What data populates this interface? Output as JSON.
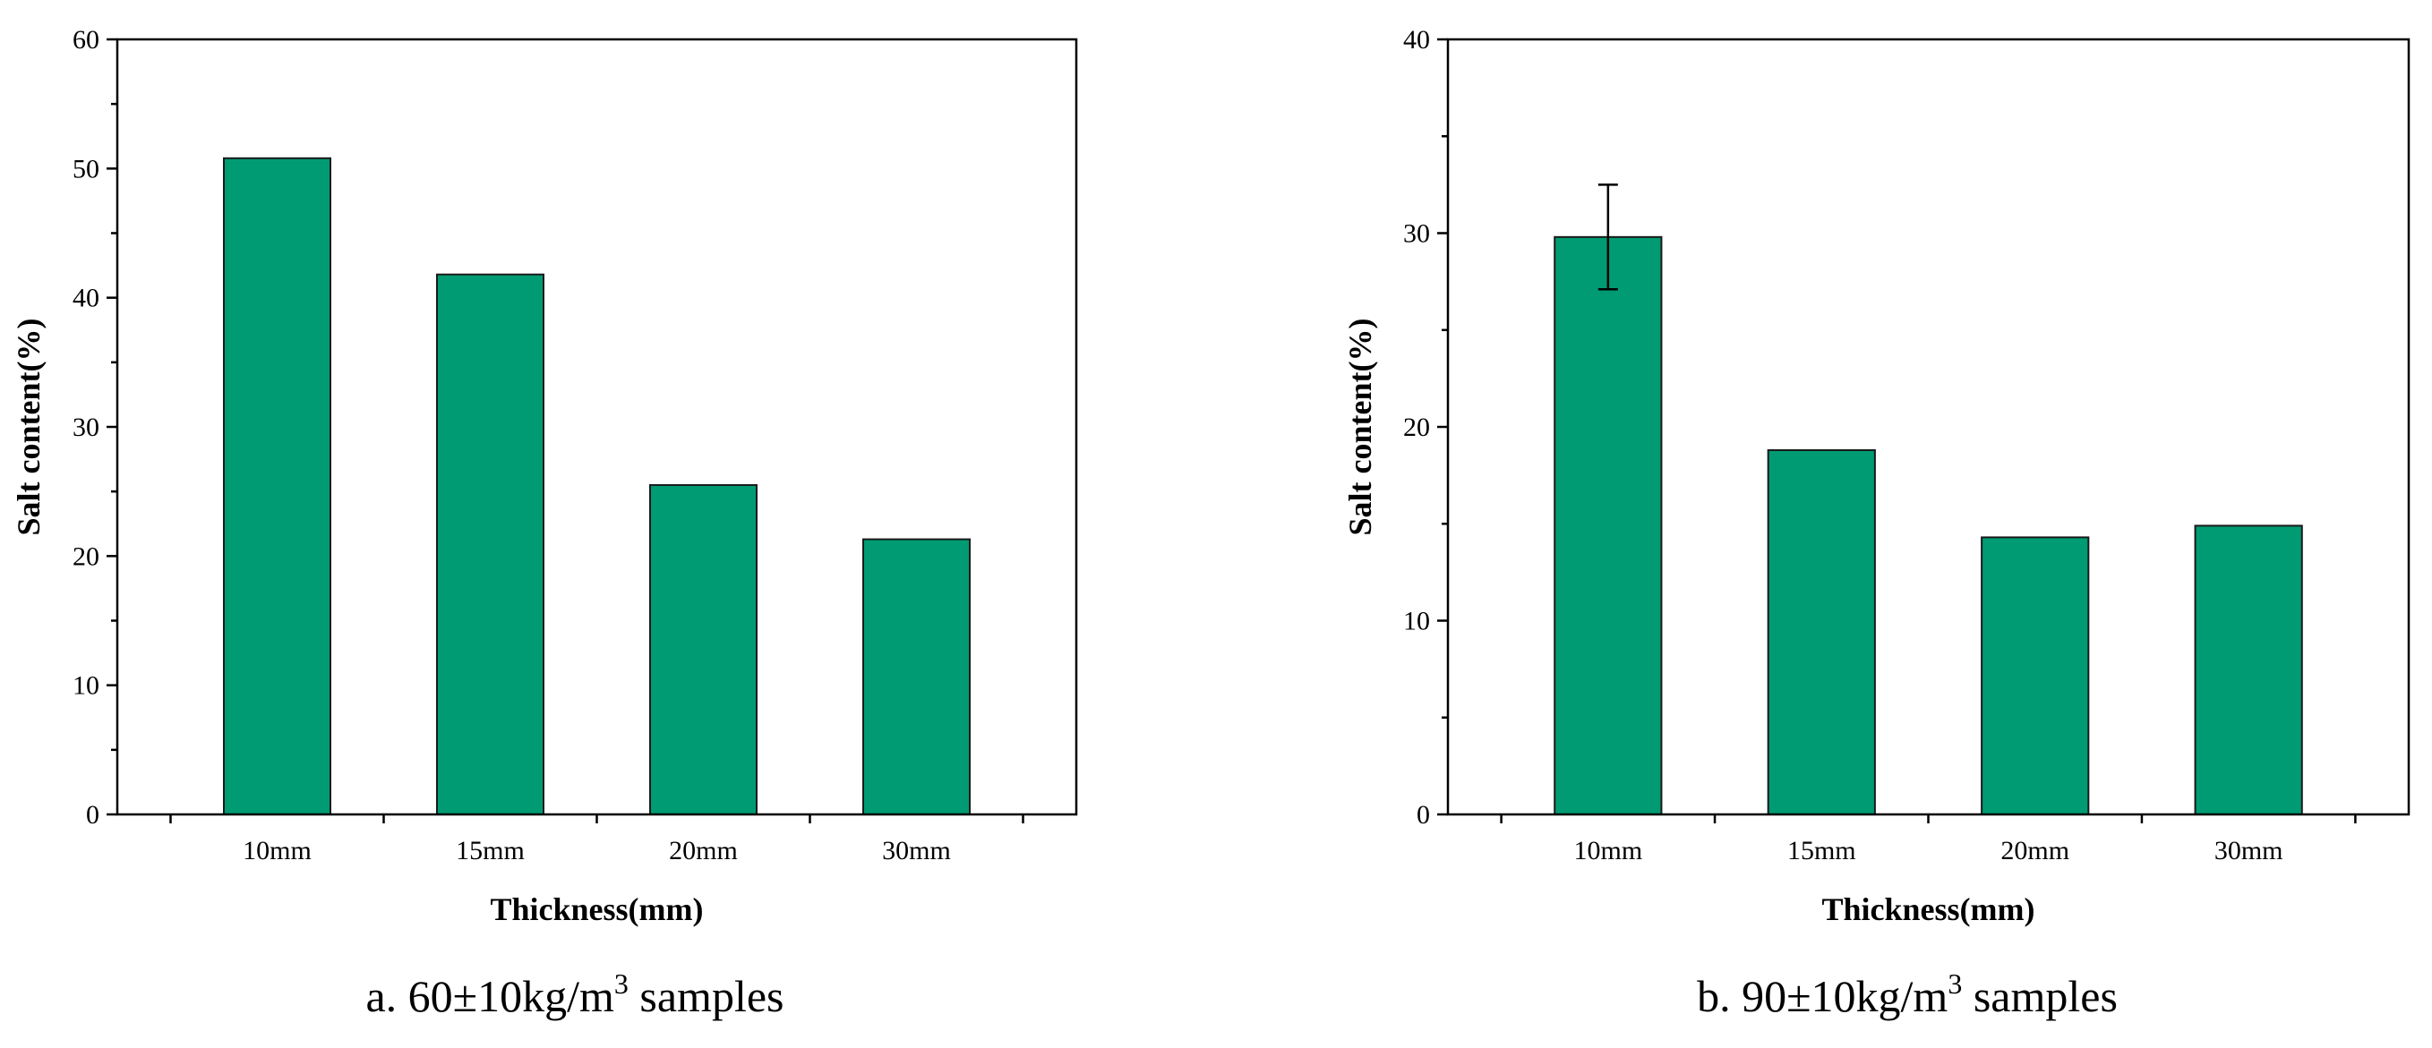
{
  "chart_data": [
    {
      "type": "bar",
      "categories": [
        "10mm",
        "15mm",
        "20mm",
        "30mm"
      ],
      "values": [
        50.8,
        41.8,
        25.5,
        21.3
      ],
      "xlabel": "Thickness(mm)",
      "ylabel": "Salt content(%)",
      "ylim": [
        0,
        60
      ],
      "yticks": [
        0,
        10,
        20,
        30,
        40,
        50,
        60
      ],
      "error_bars": [
        null,
        null,
        null,
        null
      ],
      "caption_prefix": "a. 60±10kg/m",
      "caption_sup": "3",
      "caption_suffix": " samples",
      "bar_color": "#009b72"
    },
    {
      "type": "bar",
      "categories": [
        "10mm",
        "15mm",
        "20mm",
        "30mm"
      ],
      "values": [
        29.8,
        18.8,
        14.3,
        14.9
      ],
      "xlabel": "Thickness(mm)",
      "ylabel": "Salt content(%)",
      "ylim": [
        0,
        40
      ],
      "yticks": [
        0,
        10,
        20,
        30,
        40
      ],
      "error_bars": [
        [
          27.1,
          32.5
        ],
        null,
        null,
        null
      ],
      "caption_prefix": "b. 90±10kg/m",
      "caption_sup": "3",
      "caption_suffix": " samples",
      "bar_color": "#009b72"
    }
  ]
}
